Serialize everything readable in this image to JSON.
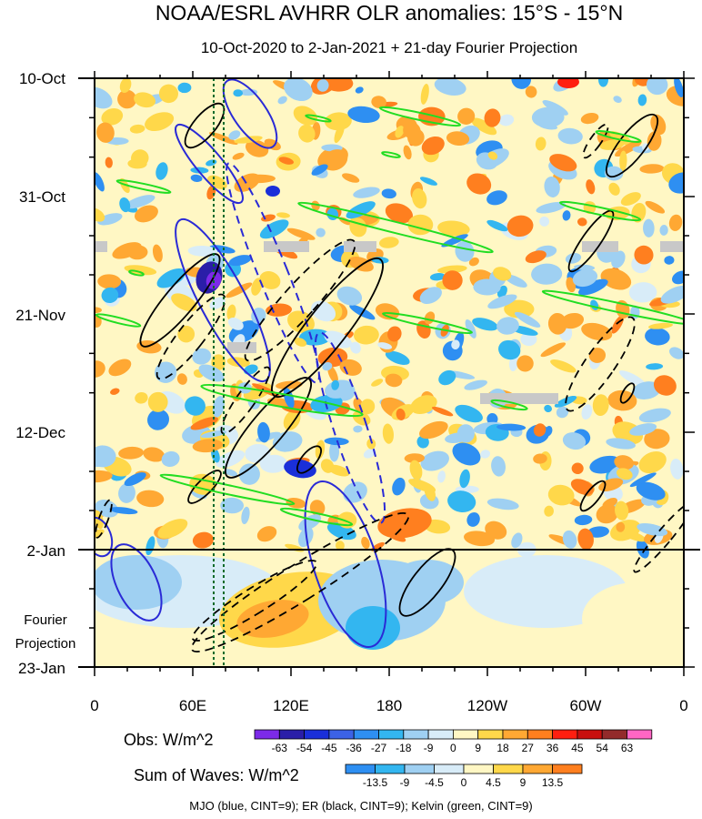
{
  "chart_data": {
    "type": "heatmap",
    "title": "NOAA/ESRL AVHRR OLR anomalies: 15°S - 15°N",
    "subtitle": "10-Oct-2020 to 2-Jan-2021 + 21-day Fourier Projection",
    "y_ticks": [
      "10-Oct",
      "31-Oct",
      "21-Nov",
      "12-Dec",
      "2-Jan",
      "23-Jan"
    ],
    "x_ticks": [
      "0",
      "60E",
      "120E",
      "180",
      "120W",
      "60W",
      "0"
    ],
    "projection_label_1": "Fourier",
    "projection_label_2": "Projection",
    "obs_legend": {
      "title": "Obs: W/m^2",
      "levels": [
        "-63",
        "-54",
        "-45",
        "-36",
        "-27",
        "-18",
        "-9",
        "0",
        "9",
        "18",
        "27",
        "36",
        "45",
        "54",
        "63"
      ],
      "colors": [
        "#7c2ae8",
        "#2a1ea8",
        "#1a2fd9",
        "#3c62e6",
        "#2e8ff2",
        "#33b6f0",
        "#9fd0f2",
        "#d8ecf8",
        "#fff7c4",
        "#ffd84a",
        "#ffa833",
        "#ff7f1f",
        "#ff1f10",
        "#c8100e",
        "#932b2b",
        "#ff66c4"
      ]
    },
    "waves_legend": {
      "title": "Sum of Waves: W/m^2",
      "levels": [
        "-13.5",
        "-9",
        "-4.5",
        "0",
        "4.5",
        "9",
        "13.5"
      ],
      "colors": [
        "#2e8ff2",
        "#33b6f0",
        "#9fd0f2",
        "#d8ecf8",
        "#fff7c4",
        "#ffd84a",
        "#ffa833",
        "#ff7f1f"
      ]
    },
    "footer": "MJO (blue, CINT=9); ER (black, CINT=9); Kelvin (green, CINT=9)",
    "mjo_color": "#2a2ad6",
    "er_color": "#000000",
    "kelvin_color": "#22dd22"
  }
}
